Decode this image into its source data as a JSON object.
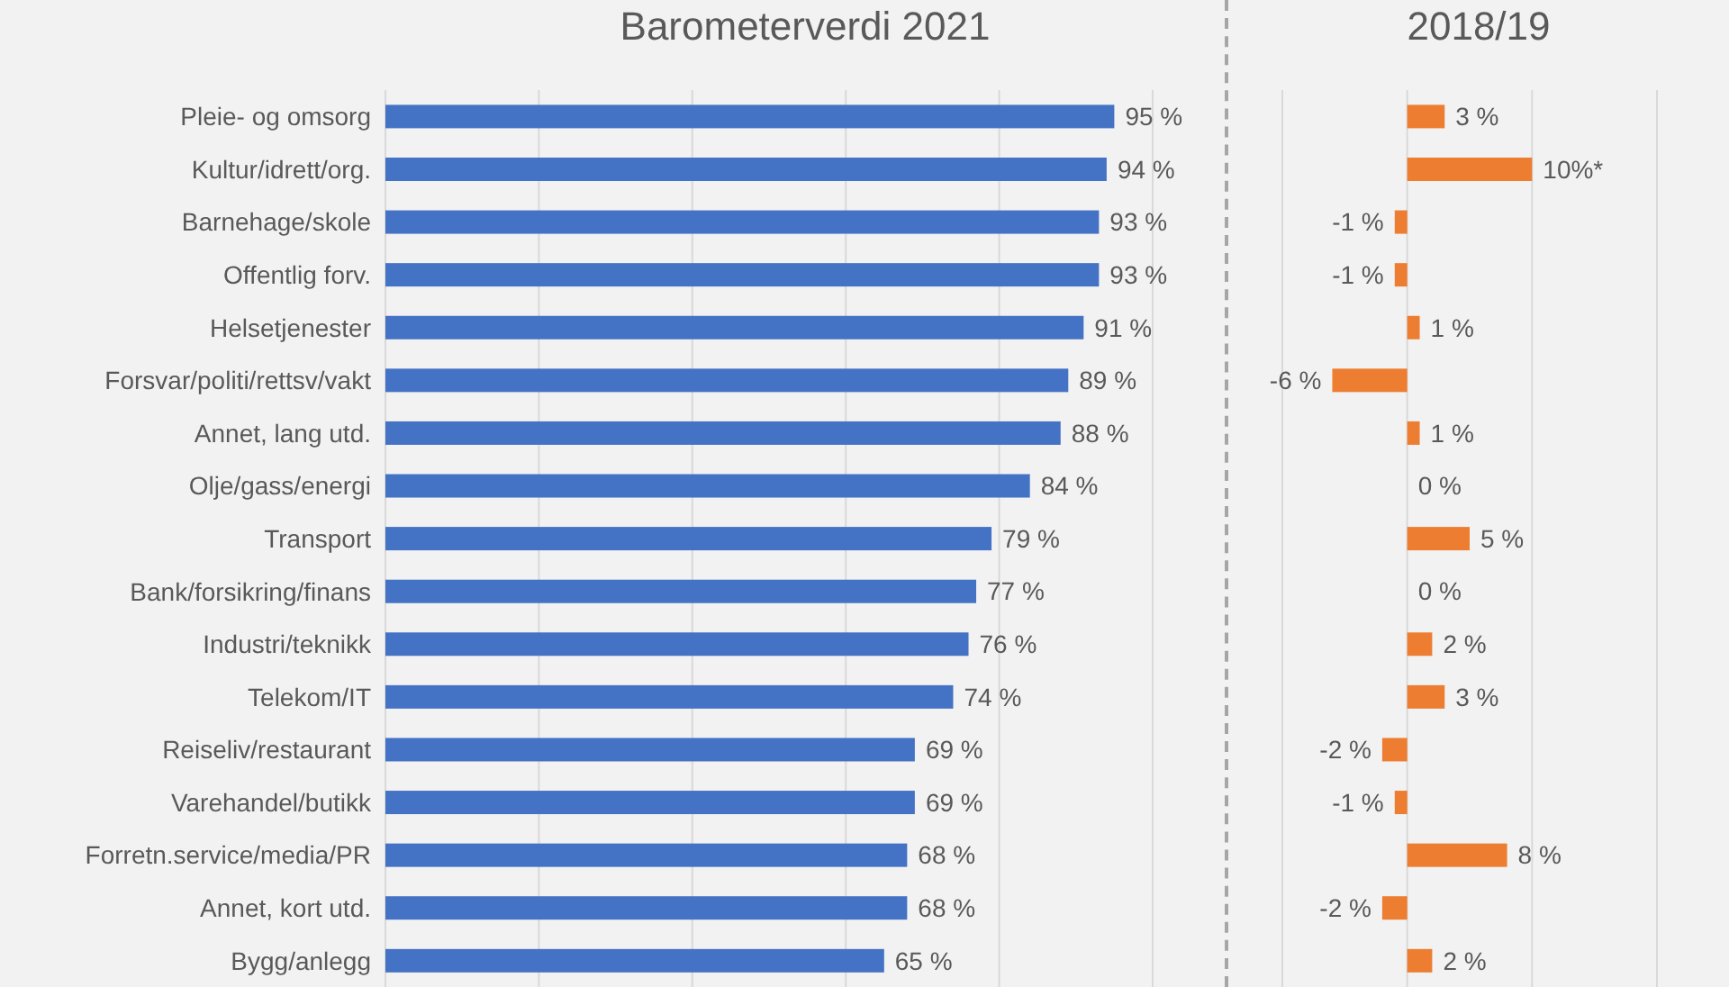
{
  "chart_data": [
    {
      "type": "bar",
      "orientation": "horizontal",
      "title": "Barometerverdi 2021",
      "categories": [
        "Pleie- og omsorg",
        "Kultur/idrett/org.",
        "Barnehage/skole",
        "Offentlig forv.",
        "Helsetjenester",
        "Forsvar/politi/rettsv/vakt",
        "Annet, lang utd.",
        "Olje/gass/energi",
        "Transport",
        "Bank/forsikring/finans",
        "Industri/teknikk",
        "Telekom/IT",
        "Reiseliv/restaurant",
        "Varehandel/butikk",
        "Forretn.service/media/PR",
        "Annet, kort utd.",
        "Bygg/anlegg"
      ],
      "values": [
        95,
        94,
        93,
        93,
        91,
        89,
        88,
        84,
        79,
        77,
        76,
        74,
        69,
        69,
        68,
        68,
        65
      ],
      "value_labels": [
        "95 %",
        "94 %",
        "93 %",
        "93 %",
        "91 %",
        "89 %",
        "88 %",
        "84 %",
        "79 %",
        "77 %",
        "76 %",
        "74 %",
        "69 %",
        "69 %",
        "68 %",
        "68 %",
        "65 %"
      ],
      "color": "#4472c4",
      "xlim": [
        0,
        100
      ],
      "xticks": [
        {
          "value": 0,
          "label": null
        },
        {
          "value": 20,
          "label": null
        },
        {
          "value": 40,
          "label": null
        },
        {
          "value": 60,
          "label": null
        },
        {
          "value": 80,
          "label": null
        },
        {
          "value": 100,
          "label": null
        }
      ],
      "grid": "x",
      "tick_labels": "y"
    },
    {
      "type": "bar",
      "orientation": "horizontal",
      "title": "2018/19",
      "values": [
        3,
        10,
        -1,
        -1,
        1,
        -6,
        1,
        0,
        5,
        0,
        2,
        3,
        -2,
        -1,
        8,
        -2,
        2
      ],
      "value_labels": [
        "3 %",
        "10%*",
        "-1 %",
        "-1 %",
        "1 %",
        "-6 %",
        "1 %",
        "0 %",
        "5 %",
        "0 %",
        "2 %",
        "3 %",
        "-2 %",
        "-1 %",
        "8 %",
        "-2 %",
        "2 %"
      ],
      "color": "#ed7d31",
      "xlim": [
        -10,
        20
      ],
      "xticks": [
        {
          "value": -10,
          "label": null
        },
        {
          "value": 0,
          "label": null
        },
        {
          "value": 10,
          "label": null
        },
        {
          "value": 20,
          "label": null
        }
      ],
      "grid": "x",
      "tick_labels": false
    }
  ]
}
